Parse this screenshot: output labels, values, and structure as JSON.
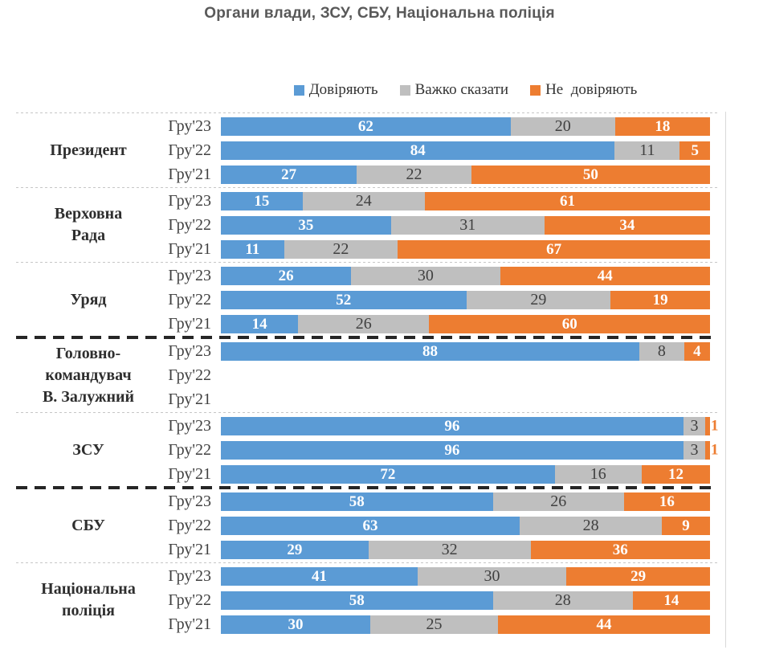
{
  "title": "Органи влади, ЗСУ, СБУ, Національна поліція",
  "legend": [
    {
      "label": "Довіряють",
      "color": "#5B9BD5"
    },
    {
      "label": "Важко сказати",
      "color": "#BFBFBF"
    },
    {
      "label": "Не  довіряють",
      "color": "#ED7D31"
    }
  ],
  "chart_data": {
    "type": "bar",
    "orientation": "horizontal",
    "stacked": true,
    "unit": "percent",
    "xlim": [
      0,
      100
    ],
    "title": "Органи влади, ЗСУ, СБУ, Національна поліція",
    "legend_position": "top",
    "series_names": [
      "Довіряють",
      "Важко сказати",
      "Не довіряють"
    ],
    "colors": {
      "trust": "#5B9BD5",
      "hard_to_say": "#BFBFBF",
      "distrust": "#ED7D31"
    },
    "groups": [
      {
        "label": "Президент",
        "separator_after": "dotted",
        "rows": [
          {
            "period": "Гру'23",
            "values": [
              62,
              20,
              18
            ]
          },
          {
            "period": "Гру'22",
            "values": [
              84,
              11,
              5
            ]
          },
          {
            "period": "Гру'21",
            "values": [
              27,
              22,
              50
            ]
          }
        ]
      },
      {
        "label": "Верховна\nРада",
        "separator_after": "dotted",
        "rows": [
          {
            "period": "Гру'23",
            "values": [
              15,
              24,
              61
            ]
          },
          {
            "period": "Гру'22",
            "values": [
              35,
              31,
              34
            ]
          },
          {
            "period": "Гру'21",
            "values": [
              11,
              22,
              67
            ]
          }
        ]
      },
      {
        "label": "Уряд",
        "separator_after": "thick",
        "rows": [
          {
            "period": "Гру'23",
            "values": [
              26,
              30,
              44
            ]
          },
          {
            "period": "Гру'22",
            "values": [
              52,
              29,
              19
            ]
          },
          {
            "period": "Гру'21",
            "values": [
              14,
              26,
              60
            ]
          }
        ]
      },
      {
        "label": "Головно-\nкомандувач\nВ. Залужний",
        "separator_after": "dotted",
        "rows": [
          {
            "period": "Гру'23",
            "values": [
              88,
              8,
              4
            ]
          },
          {
            "period": "Гру'22",
            "values": null
          },
          {
            "period": "Гру'21",
            "values": null
          }
        ]
      },
      {
        "label": "ЗСУ",
        "separator_after": "thick",
        "rows": [
          {
            "period": "Гру'23",
            "values": [
              96,
              3,
              1
            ]
          },
          {
            "period": "Гру'22",
            "values": [
              96,
              3,
              1
            ]
          },
          {
            "period": "Гру'21",
            "values": [
              72,
              16,
              12
            ]
          }
        ]
      },
      {
        "label": "СБУ",
        "separator_after": "dotted",
        "rows": [
          {
            "period": "Гру'23",
            "values": [
              58,
              26,
              16
            ]
          },
          {
            "period": "Гру'22",
            "values": [
              63,
              28,
              9
            ]
          },
          {
            "period": "Гру'21",
            "values": [
              29,
              32,
              36
            ]
          }
        ]
      },
      {
        "label": "Національна\nполіція",
        "separator_after": null,
        "rows": [
          {
            "period": "Гру'23",
            "values": [
              41,
              30,
              29
            ]
          },
          {
            "period": "Гру'22",
            "values": [
              58,
              28,
              14
            ]
          },
          {
            "period": "Гру'21",
            "values": [
              30,
              25,
              44
            ]
          }
        ]
      }
    ]
  }
}
